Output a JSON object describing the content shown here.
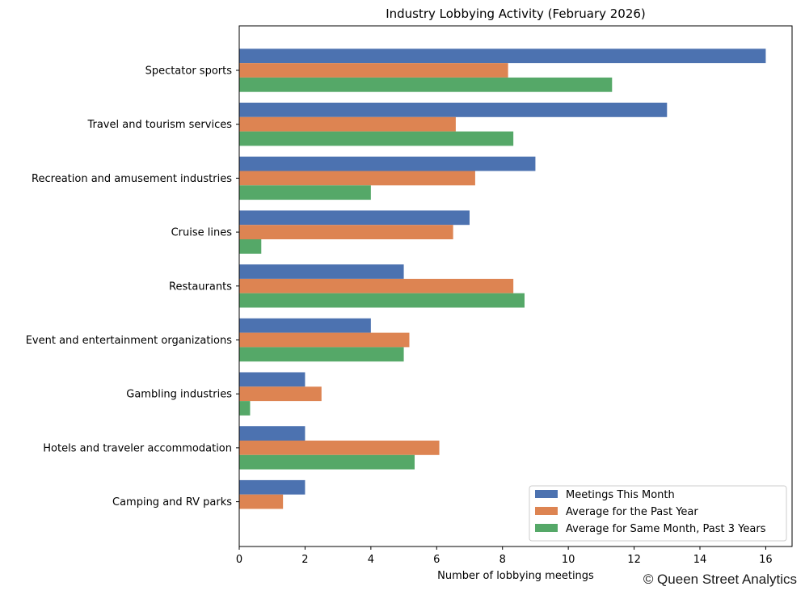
{
  "chart_data": {
    "type": "bar",
    "orientation": "horizontal",
    "title": "Industry Lobbying Activity (February 2026)",
    "xlabel": "Number of lobbying meetings",
    "ylabel": "",
    "xlim": [
      0,
      16.8
    ],
    "xticks": [
      0,
      2,
      4,
      6,
      8,
      10,
      12,
      14,
      16
    ],
    "grid": false,
    "legend_position": "lower-right",
    "categories": [
      "Spectator sports",
      "Travel and tourism services",
      "Recreation and amusement industries",
      "Cruise lines",
      "Restaurants",
      "Event and entertainment organizations",
      "Gambling industries",
      "Hotels and traveler accommodation",
      "Camping and RV parks"
    ],
    "series": [
      {
        "name": "Meetings This Month",
        "color": "#4c72b0",
        "values": [
          16,
          13,
          9,
          7,
          5,
          4,
          2,
          2,
          2
        ]
      },
      {
        "name": "Average for the Past Year",
        "color": "#dd8452",
        "values": [
          8.17,
          6.58,
          7.17,
          6.5,
          8.33,
          5.17,
          2.5,
          6.08,
          1.33
        ]
      },
      {
        "name": "Average for Same Month, Past 3 Years",
        "color": "#55a868",
        "values": [
          11.33,
          8.33,
          4.0,
          0.67,
          8.67,
          5.0,
          0.33,
          5.33,
          0
        ]
      }
    ]
  },
  "watermark": "© Queen Street Analytics"
}
